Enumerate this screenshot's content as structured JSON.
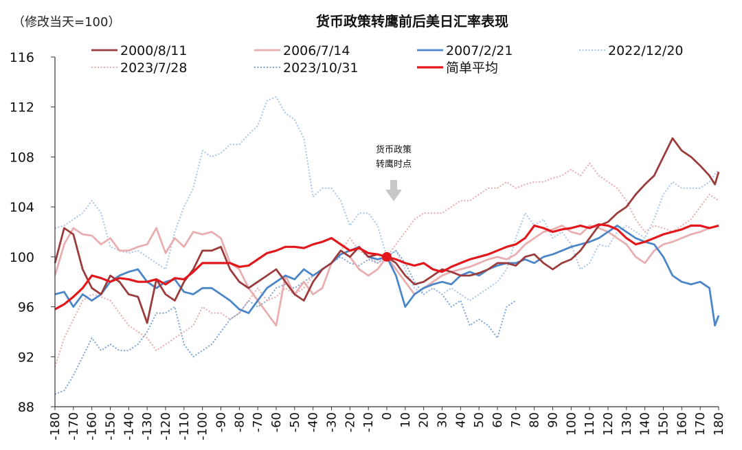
{
  "chart_data": {
    "type": "line",
    "title": "货币政策转鹰前后美日汇率表现",
    "unit_label": "（修改当天=100）",
    "annotation": [
      "货币政策",
      "转鹰时点"
    ],
    "xlim": [
      -180,
      180
    ],
    "ylim": [
      88,
      116
    ],
    "x_ticks": [
      -180,
      -170,
      -160,
      -150,
      -140,
      -130,
      -120,
      -110,
      -100,
      -90,
      -80,
      -70,
      -60,
      -50,
      -40,
      -30,
      -20,
      -10,
      0,
      10,
      20,
      30,
      40,
      50,
      60,
      70,
      80,
      90,
      100,
      110,
      120,
      130,
      140,
      150,
      160,
      170,
      180
    ],
    "y_ticks": [
      88,
      92,
      96,
      100,
      104,
      108,
      112,
      116
    ],
    "marker": {
      "x": 0,
      "y": 100
    },
    "legend_placement": "top",
    "series": [
      {
        "name": "2000/8/11",
        "color": "#9B3B3B",
        "style": "solid",
        "x": [
          -180,
          -175,
          -170,
          -165,
          -160,
          -155,
          -150,
          -145,
          -140,
          -135,
          -130,
          -125,
          -120,
          -115,
          -110,
          -105,
          -100,
          -95,
          -90,
          -85,
          -80,
          -75,
          -70,
          -65,
          -60,
          -55,
          -50,
          -45,
          -40,
          -35,
          -30,
          -25,
          -20,
          -15,
          -10,
          -5,
          0,
          5,
          10,
          15,
          20,
          25,
          30,
          35,
          40,
          45,
          50,
          55,
          60,
          65,
          70,
          75,
          80,
          85,
          90,
          95,
          100,
          105,
          110,
          115,
          120,
          125,
          130,
          135,
          140,
          145,
          150,
          155,
          160,
          165,
          170,
          175,
          178,
          180
        ],
        "y": [
          99.5,
          102.3,
          101.8,
          99.0,
          97.5,
          97.0,
          98.5,
          98.0,
          97.0,
          96.8,
          94.7,
          98.2,
          97.0,
          96.5,
          98.0,
          99.0,
          100.5,
          100.5,
          100.8,
          99.0,
          98.0,
          97.5,
          98.0,
          98.5,
          99.0,
          98.0,
          97.0,
          96.5,
          98.0,
          99.0,
          99.5,
          100.5,
          100.0,
          100.8,
          100.0,
          100.2,
          100.0,
          99.5,
          98.5,
          97.8,
          98.0,
          98.5,
          99.0,
          98.8,
          98.5,
          98.5,
          98.7,
          99.0,
          99.5,
          99.5,
          99.3,
          100.0,
          100.2,
          99.5,
          99.0,
          99.5,
          99.8,
          100.5,
          101.5,
          102.5,
          102.8,
          103.5,
          104.0,
          105.0,
          105.8,
          106.5,
          108.0,
          109.5,
          108.5,
          108.0,
          107.3,
          106.5,
          105.8,
          106.8
        ]
      },
      {
        "name": "2006/7/14",
        "color": "#E8AEB0",
        "style": "solid",
        "x": [
          -180,
          -175,
          -170,
          -165,
          -160,
          -155,
          -150,
          -145,
          -140,
          -135,
          -130,
          -125,
          -120,
          -115,
          -110,
          -105,
          -100,
          -95,
          -90,
          -85,
          -80,
          -75,
          -70,
          -65,
          -60,
          -55,
          -50,
          -45,
          -40,
          -35,
          -30,
          -25,
          -20,
          -15,
          -10,
          -5,
          0,
          5,
          10,
          15,
          20,
          25,
          30,
          35,
          40,
          45,
          50,
          55,
          60,
          65,
          70,
          75,
          80,
          85,
          90,
          95,
          100,
          105,
          110,
          115,
          120,
          125,
          130,
          135,
          140,
          145,
          150,
          155,
          160,
          165,
          170,
          175,
          180
        ],
        "y": [
          98.5,
          101.0,
          102.3,
          101.8,
          101.7,
          101.0,
          101.5,
          100.5,
          100.5,
          100.8,
          101.0,
          102.3,
          100.3,
          101.5,
          100.8,
          102.0,
          101.8,
          102.0,
          101.5,
          99.5,
          99.0,
          97.5,
          96.5,
          95.5,
          94.5,
          98.5,
          97.0,
          98.0,
          97.0,
          97.5,
          99.5,
          100.5,
          100.0,
          99.0,
          98.5,
          99.0,
          100.0,
          99.0,
          98.0,
          97.0,
          97.5,
          98.0,
          98.5,
          98.8,
          99.0,
          99.2,
          99.5,
          99.8,
          100.0,
          99.8,
          100.2,
          101.0,
          101.5,
          102.0,
          102.2,
          102.5,
          102.0,
          101.8,
          102.5,
          102.3,
          102.0,
          101.5,
          101.0,
          100.0,
          99.5,
          100.5,
          101.0,
          101.2,
          101.5,
          101.8,
          102.0,
          102.3,
          102.5
        ]
      },
      {
        "name": "2007/2/21",
        "color": "#4A86C8",
        "style": "solid",
        "x": [
          -180,
          -175,
          -170,
          -165,
          -160,
          -155,
          -150,
          -145,
          -140,
          -135,
          -130,
          -125,
          -120,
          -115,
          -110,
          -105,
          -100,
          -95,
          -90,
          -85,
          -80,
          -75,
          -70,
          -65,
          -60,
          -55,
          -50,
          -45,
          -40,
          -35,
          -30,
          -25,
          -20,
          -15,
          -10,
          -5,
          0,
          5,
          10,
          15,
          20,
          25,
          30,
          35,
          40,
          45,
          50,
          55,
          60,
          65,
          70,
          75,
          80,
          85,
          90,
          95,
          100,
          105,
          110,
          115,
          120,
          125,
          130,
          135,
          140,
          145,
          150,
          155,
          160,
          165,
          170,
          175,
          178,
          180
        ],
        "y": [
          97.0,
          97.2,
          96.0,
          97.0,
          96.5,
          97.0,
          98.0,
          98.5,
          98.8,
          99.0,
          98.0,
          97.5,
          98.0,
          98.2,
          97.2,
          97.0,
          97.5,
          97.5,
          97.0,
          96.5,
          95.8,
          95.5,
          96.5,
          97.5,
          98.0,
          98.5,
          98.2,
          99.0,
          98.5,
          99.0,
          99.5,
          100.2,
          100.5,
          100.8,
          100.0,
          99.8,
          100.0,
          98.5,
          96.0,
          97.0,
          97.5,
          97.8,
          98.0,
          97.8,
          98.5,
          98.8,
          98.5,
          99.0,
          99.3,
          99.5,
          99.5,
          99.8,
          99.5,
          100.0,
          100.2,
          100.5,
          100.8,
          101.0,
          101.2,
          101.5,
          102.0,
          102.5,
          102.0,
          101.5,
          101.2,
          101.0,
          100.0,
          98.5,
          98.0,
          97.8,
          98.0,
          97.5,
          94.5,
          95.3
        ]
      },
      {
        "name": "2022/12/20",
        "color": "#A9C4E4",
        "style": "dotted",
        "x": [
          -180,
          -175,
          -170,
          -165,
          -160,
          -155,
          -150,
          -145,
          -140,
          -135,
          -130,
          -125,
          -120,
          -115,
          -110,
          -105,
          -100,
          -95,
          -90,
          -85,
          -80,
          -75,
          -70,
          -65,
          -60,
          -55,
          -50,
          -45,
          -40,
          -35,
          -30,
          -25,
          -20,
          -15,
          -10,
          -5,
          0,
          5,
          10,
          15,
          20,
          25,
          30,
          35,
          40,
          45,
          50,
          55,
          60,
          65,
          70,
          75,
          80,
          85,
          90,
          95,
          100,
          105,
          110,
          115,
          120,
          125,
          130,
          135,
          140,
          145,
          150,
          155,
          160,
          165,
          170,
          175,
          180
        ],
        "y": [
          102.3,
          102.5,
          103.0,
          103.5,
          104.5,
          103.5,
          100.8,
          100.5,
          100.3,
          100.5,
          100.0,
          99.5,
          99.0,
          102.0,
          104.0,
          105.5,
          108.5,
          108.0,
          108.3,
          109.0,
          109.0,
          109.8,
          110.5,
          112.5,
          112.8,
          111.5,
          111.0,
          109.5,
          104.8,
          105.5,
          105.5,
          104.5,
          102.5,
          103.5,
          103.5,
          102.5,
          100.0,
          100.5,
          99.0,
          97.5,
          97.0,
          97.5,
          97.0,
          97.5,
          97.0,
          96.5,
          97.0,
          97.5,
          98.0,
          99.0,
          101.5,
          103.5,
          102.5,
          103.0,
          101.5,
          102.0,
          101.0,
          99.0,
          99.5,
          101.0,
          100.8,
          102.0,
          102.5,
          102.0,
          101.5,
          103.0,
          105.0,
          106.0,
          105.5,
          105.5,
          105.5,
          106.0,
          107.0
        ]
      },
      {
        "name": "2023/7/28",
        "color": "#E8A9AA",
        "style": "dotted",
        "x": [
          -180,
          -175,
          -170,
          -165,
          -160,
          -155,
          -150,
          -145,
          -140,
          -135,
          -130,
          -125,
          -120,
          -115,
          -110,
          -105,
          -100,
          -95,
          -90,
          -85,
          -80,
          -75,
          -70,
          -65,
          -60,
          -55,
          -50,
          -45,
          -40,
          -35,
          -30,
          -25,
          -20,
          -15,
          -10,
          -5,
          0,
          5,
          10,
          15,
          20,
          25,
          30,
          35,
          40,
          45,
          50,
          55,
          60,
          65,
          70,
          75,
          80,
          85,
          90,
          95,
          100,
          105,
          110,
          115,
          120,
          125,
          130,
          135,
          140,
          145,
          150,
          155,
          160,
          165,
          170,
          175,
          180
        ],
        "y": [
          91.2,
          93.5,
          95.0,
          96.5,
          97.0,
          96.8,
          96.5,
          95.5,
          94.5,
          94.0,
          93.5,
          92.5,
          93.0,
          93.5,
          94.0,
          94.5,
          96.0,
          95.5,
          95.5,
          95.0,
          95.5,
          96.5,
          97.5,
          96.5,
          96.8,
          97.5,
          97.0,
          97.5,
          98.5,
          99.0,
          99.5,
          100.5,
          101.5,
          100.5,
          100.0,
          99.5,
          100.0,
          101.0,
          102.0,
          103.0,
          103.5,
          103.5,
          103.5,
          104.0,
          104.5,
          104.5,
          105.0,
          105.5,
          105.5,
          106.0,
          105.5,
          105.8,
          106.0,
          106.0,
          106.3,
          106.5,
          107.0,
          106.5,
          107.5,
          106.5,
          106.0,
          105.5,
          104.5,
          103.0,
          102.0,
          102.5,
          102.3,
          102.0,
          102.5,
          103.0,
          104.0,
          105.0,
          104.5
        ]
      },
      {
        "name": "2023/10/31",
        "color": "#7BA2D6",
        "style": "dotted",
        "x": [
          -180,
          -175,
          -170,
          -165,
          -160,
          -155,
          -150,
          -145,
          -140,
          -135,
          -130,
          -125,
          -120,
          -115,
          -110,
          -105,
          -100,
          -95,
          -90,
          -85,
          -80,
          -75,
          -70,
          -65,
          -60,
          -55,
          -50,
          -45,
          -40,
          -35,
          -30,
          -25,
          -20,
          -15,
          -10,
          -5,
          0,
          5,
          10,
          15,
          20,
          25,
          30,
          35,
          40,
          45,
          50,
          55,
          60,
          65,
          70
        ],
        "y": [
          89.0,
          89.3,
          90.5,
          92.0,
          93.5,
          92.5,
          93.0,
          92.5,
          92.5,
          93.0,
          94.0,
          95.5,
          95.5,
          96.0,
          93.0,
          92.0,
          92.5,
          93.0,
          94.0,
          95.0,
          95.5,
          96.5,
          96.0,
          96.5,
          97.5,
          97.8,
          97.5,
          98.0,
          98.5,
          99.0,
          99.5,
          100.0,
          99.5,
          99.3,
          99.8,
          99.5,
          100.0,
          100.5,
          99.5,
          98.0,
          97.0,
          97.5,
          97.0,
          96.0,
          96.5,
          94.5,
          95.0,
          94.5,
          93.5,
          96.0,
          96.5
        ]
      },
      {
        "name": "简单平均",
        "color": "#E3161B",
        "style": "solid-bold",
        "x": [
          -180,
          -175,
          -170,
          -165,
          -160,
          -155,
          -150,
          -145,
          -140,
          -135,
          -130,
          -125,
          -120,
          -115,
          -110,
          -105,
          -100,
          -95,
          -90,
          -85,
          -80,
          -75,
          -70,
          -65,
          -60,
          -55,
          -50,
          -45,
          -40,
          -35,
          -30,
          -25,
          -20,
          -15,
          -10,
          -5,
          0,
          5,
          10,
          15,
          20,
          25,
          30,
          35,
          40,
          45,
          50,
          55,
          60,
          65,
          70,
          75,
          80,
          85,
          90,
          95,
          100,
          105,
          110,
          115,
          120,
          125,
          130,
          135,
          140,
          145,
          150,
          155,
          160,
          165,
          170,
          175,
          180
        ],
        "y": [
          95.8,
          96.2,
          96.8,
          97.5,
          98.5,
          98.3,
          98.0,
          98.3,
          98.2,
          98.0,
          98.0,
          98.2,
          97.8,
          98.3,
          98.2,
          98.8,
          99.5,
          99.5,
          99.5,
          99.5,
          99.2,
          99.3,
          99.8,
          100.3,
          100.5,
          100.8,
          100.8,
          100.7,
          101.0,
          101.2,
          101.5,
          101.0,
          100.5,
          100.7,
          100.3,
          100.2,
          100.0,
          99.8,
          99.5,
          99.3,
          99.5,
          99.0,
          98.8,
          99.2,
          99.5,
          99.8,
          100.0,
          100.2,
          100.5,
          100.8,
          101.0,
          101.5,
          102.5,
          102.3,
          102.0,
          102.2,
          102.3,
          102.5,
          102.3,
          102.6,
          102.5,
          102.2,
          101.5,
          101.0,
          101.2,
          101.5,
          101.8,
          102.0,
          102.2,
          102.5,
          102.5,
          102.3,
          102.5
        ]
      }
    ]
  }
}
